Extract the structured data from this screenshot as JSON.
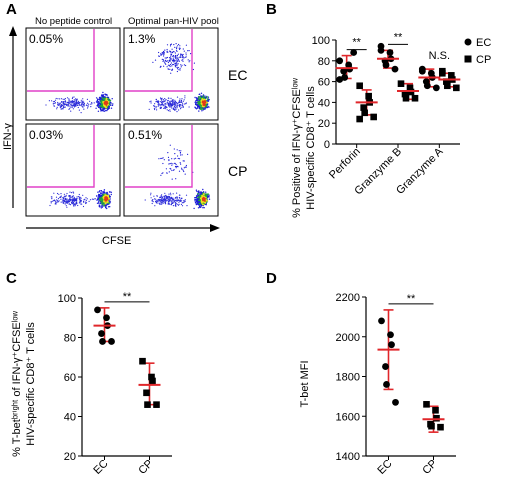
{
  "panel_letters": {
    "a": "A",
    "b": "B",
    "c": "C",
    "d": "D"
  },
  "panelA": {
    "column_titles": [
      "No peptide control",
      "Optimal pan-HIV pool"
    ],
    "row_labels": [
      "EC",
      "CP"
    ],
    "ylabel": "IFN-γ",
    "xlabel": "CFSE",
    "percentages": [
      [
        "0.05%",
        "1.3%"
      ],
      [
        "0.03%",
        "0.51%"
      ]
    ],
    "gate_color": "#e040c8"
  },
  "colors": {
    "error_bar": "#e0262a",
    "marker": "#000000"
  },
  "chart_data": [
    {
      "panel": "B",
      "type": "scatter",
      "categories": [
        "Perforin",
        "Granzyme B",
        "Granzyme A"
      ],
      "ylabel_line1": "% Positive of IFN-γ⁺CFSEˡᵒʷ",
      "ylabel_line2": "HIV-specific CD8⁺ T cells",
      "ylim": [
        0,
        100
      ],
      "yticks": [
        "0",
        "20",
        "40",
        "60",
        "80",
        "100"
      ],
      "legend": [
        {
          "name": "EC",
          "marker": "circle"
        },
        {
          "name": "CP",
          "marker": "square"
        }
      ],
      "legend_position": "top-right",
      "significance": [
        "**",
        "**",
        "N.S."
      ],
      "series": [
        {
          "name": "EC",
          "marker": "circle",
          "points": [
            [
              80,
              76,
              72,
              70,
              64,
              88,
              62
            ],
            [
              90,
              88,
              82,
              80,
              76,
              72,
              94
            ],
            [
              70,
              68,
              64,
              60,
              56,
              54,
              72
            ]
          ],
          "mean": [
            73,
            82,
            64
          ],
          "err_low": [
            63,
            73,
            55
          ],
          "err_high": [
            85,
            90,
            72
          ]
        },
        {
          "name": "CP",
          "marker": "square",
          "points": [
            [
              56,
              46,
              40,
              35,
              30,
              26,
              24
            ],
            [
              58,
              54,
              50,
              48,
              44,
              44
            ],
            [
              70,
              66,
              62,
              60,
              56,
              54,
              68
            ]
          ],
          "mean": [
            40,
            51,
            62
          ],
          "err_low": [
            28,
            43,
            55
          ],
          "err_high": [
            52,
            58,
            68
          ]
        }
      ]
    },
    {
      "panel": "C",
      "type": "scatter",
      "categories": [
        "EC",
        "CP"
      ],
      "ylabel_line1": "% T-betᵇʳⁱᵍʰᵗ of IFN-γ⁺CFSEˡᵒʷ",
      "ylabel_line2": "HIV-specific CD8⁺ T cells",
      "ylim": [
        20,
        100
      ],
      "yticks": [
        "20",
        "40",
        "60",
        "80",
        "100"
      ],
      "significance": [
        "**"
      ],
      "series": [
        {
          "name": "EC",
          "marker": "circle",
          "points": [
            94,
            90,
            86,
            82,
            78,
            78
          ],
          "mean": 86,
          "err_low": 78,
          "err_high": 95
        },
        {
          "name": "CP",
          "marker": "square",
          "points": [
            68,
            60,
            58,
            52,
            46,
            46
          ],
          "mean": 56,
          "err_low": 46,
          "err_high": 67
        }
      ]
    },
    {
      "panel": "D",
      "type": "scatter",
      "categories": [
        "EC",
        "CP"
      ],
      "ylabel_line1": "T-bet MFI",
      "ylim": [
        1400,
        2200
      ],
      "yticks": [
        "1400",
        "1600",
        "1800",
        "2000",
        "2200"
      ],
      "significance": [
        "**"
      ],
      "series": [
        {
          "name": "EC",
          "marker": "circle",
          "points": [
            2080,
            2010,
            1960,
            1850,
            1760,
            1670
          ],
          "mean": 1935,
          "err_low": 1735,
          "err_high": 2135
        },
        {
          "name": "CP",
          "marker": "square",
          "points": [
            1660,
            1630,
            1590,
            1560,
            1550,
            1545
          ],
          "mean": 1585,
          "err_low": 1520,
          "err_high": 1650
        }
      ]
    }
  ]
}
